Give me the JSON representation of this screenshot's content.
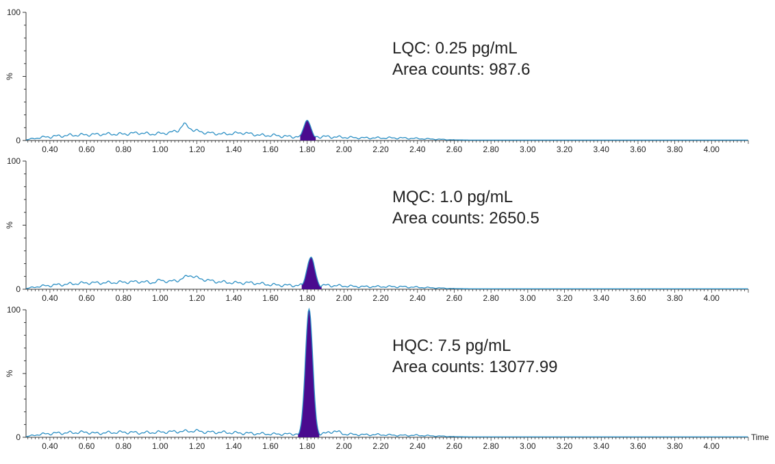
{
  "colors": {
    "trace": "#2b8fc4",
    "peak_fill": "#4a0b8f",
    "axis": "#333333"
  },
  "chart_data": [
    {
      "type": "line",
      "xlabel": "",
      "ylabel": "%",
      "ylim": [
        0,
        100
      ],
      "xlim": [
        0.27,
        4.2
      ],
      "x_ticks": [
        "0.40",
        "0.60",
        "0.80",
        "1.00",
        "1.20",
        "1.40",
        "1.60",
        "1.80",
        "2.00",
        "2.20",
        "2.40",
        "2.60",
        "2.80",
        "3.00",
        "3.20",
        "3.40",
        "3.60",
        "3.80",
        "4.00"
      ],
      "y_ticks": [
        "0",
        "100"
      ],
      "annotation": [
        "LQC: 0.25 pg/mL",
        "Area counts: 987.6"
      ],
      "peak": {
        "center": 1.8,
        "height": 15,
        "width": 0.02,
        "start": 1.76,
        "end": 1.85
      },
      "baseline": [
        [
          0.27,
          0.5
        ],
        [
          0.33,
          2
        ],
        [
          0.4,
          3
        ],
        [
          0.5,
          4
        ],
        [
          0.6,
          4.5
        ],
        [
          0.7,
          5
        ],
        [
          0.8,
          5
        ],
        [
          0.88,
          6
        ],
        [
          0.95,
          5
        ],
        [
          1.05,
          6
        ],
        [
          1.1,
          8
        ],
        [
          1.13,
          13
        ],
        [
          1.18,
          8
        ],
        [
          1.25,
          6
        ],
        [
          1.35,
          5
        ],
        [
          1.45,
          6
        ],
        [
          1.55,
          4
        ],
        [
          1.62,
          4
        ],
        [
          1.7,
          3
        ],
        [
          1.9,
          3
        ],
        [
          2.0,
          2.5
        ],
        [
          2.1,
          2
        ],
        [
          2.2,
          2
        ],
        [
          2.3,
          2
        ],
        [
          2.4,
          1.5
        ],
        [
          2.5,
          1
        ],
        [
          2.6,
          0.5
        ],
        [
          2.7,
          0.3
        ],
        [
          4.2,
          0.3
        ]
      ]
    },
    {
      "type": "line",
      "xlabel": "",
      "ylabel": "%",
      "ylim": [
        0,
        100
      ],
      "xlim": [
        0.27,
        4.2
      ],
      "x_ticks": [
        "0.40",
        "0.60",
        "0.80",
        "1.00",
        "1.20",
        "1.40",
        "1.60",
        "1.80",
        "2.00",
        "2.20",
        "2.40",
        "2.60",
        "2.80",
        "3.00",
        "3.20",
        "3.40",
        "3.60",
        "3.80",
        "4.00"
      ],
      "y_ticks": [
        "0",
        "100"
      ],
      "annotation": [
        "MQC: 1.0 pg/mL",
        "Area counts: 2650.5"
      ],
      "peak": {
        "center": 1.82,
        "height": 24,
        "width": 0.022,
        "start": 1.77,
        "end": 1.88
      },
      "baseline": [
        [
          0.27,
          0.5
        ],
        [
          0.33,
          2
        ],
        [
          0.4,
          3
        ],
        [
          0.5,
          4
        ],
        [
          0.6,
          5
        ],
        [
          0.7,
          5
        ],
        [
          0.8,
          5.5
        ],
        [
          0.9,
          6
        ],
        [
          0.95,
          5
        ],
        [
          1.0,
          7
        ],
        [
          1.05,
          6
        ],
        [
          1.1,
          7
        ],
        [
          1.16,
          11
        ],
        [
          1.22,
          8
        ],
        [
          1.3,
          6
        ],
        [
          1.4,
          5
        ],
        [
          1.5,
          5
        ],
        [
          1.6,
          3.5
        ],
        [
          1.7,
          3
        ],
        [
          1.92,
          3
        ],
        [
          2.0,
          2.5
        ],
        [
          2.1,
          2
        ],
        [
          2.2,
          2
        ],
        [
          2.3,
          2
        ],
        [
          2.4,
          1.5
        ],
        [
          2.5,
          1
        ],
        [
          2.6,
          0.5
        ],
        [
          2.7,
          0.3
        ],
        [
          4.2,
          0.3
        ]
      ]
    },
    {
      "type": "line",
      "xlabel": "Time",
      "ylabel": "%",
      "ylim": [
        0,
        100
      ],
      "xlim": [
        0.27,
        4.2
      ],
      "x_ticks": [
        "0.40",
        "0.60",
        "0.80",
        "1.00",
        "1.20",
        "1.40",
        "1.60",
        "1.80",
        "2.00",
        "2.20",
        "2.40",
        "2.60",
        "2.80",
        "3.00",
        "3.20",
        "3.40",
        "3.60",
        "3.80",
        "4.00"
      ],
      "y_ticks": [
        "0",
        "100"
      ],
      "annotation": [
        "HQC: 7.5 pg/mL",
        "Area counts: 13077.99"
      ],
      "peak": {
        "center": 1.81,
        "height": 100,
        "width": 0.02,
        "start": 1.75,
        "end": 1.87
      },
      "baseline": [
        [
          0.27,
          0.5
        ],
        [
          0.33,
          2
        ],
        [
          0.4,
          3
        ],
        [
          0.5,
          3.5
        ],
        [
          0.6,
          4
        ],
        [
          0.65,
          3
        ],
        [
          0.7,
          3.5
        ],
        [
          0.8,
          4
        ],
        [
          0.9,
          3.5
        ],
        [
          1.0,
          4
        ],
        [
          1.1,
          4.5
        ],
        [
          1.2,
          5
        ],
        [
          1.25,
          4
        ],
        [
          1.3,
          4
        ],
        [
          1.4,
          3.5
        ],
        [
          1.5,
          3
        ],
        [
          1.6,
          2.5
        ],
        [
          1.7,
          2.5
        ],
        [
          1.9,
          3
        ],
        [
          1.95,
          5
        ],
        [
          2.0,
          2.5
        ],
        [
          2.1,
          2
        ],
        [
          2.2,
          2
        ],
        [
          2.3,
          1.5
        ],
        [
          2.4,
          1.5
        ],
        [
          2.5,
          1
        ],
        [
          2.6,
          0.5
        ],
        [
          2.7,
          0.3
        ],
        [
          4.2,
          0.3
        ]
      ]
    }
  ]
}
